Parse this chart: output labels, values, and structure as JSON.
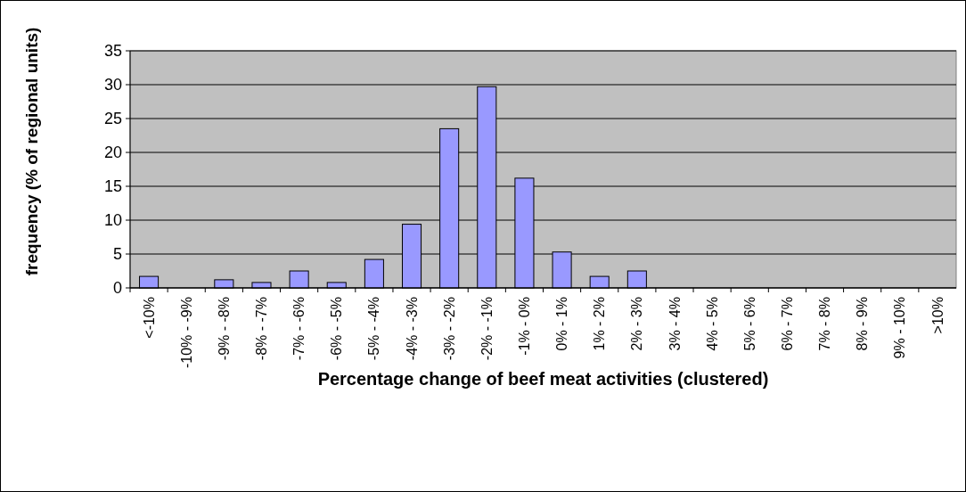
{
  "chart_data": {
    "type": "bar",
    "xlabel": "Percentage change of beef meat activities (clustered)",
    "ylabel": "frequency (% of regional units)",
    "categories": [
      "<-10%",
      "-10% - -9%",
      "-9% - -8%",
      "-8% - -7%",
      "-7% - -6%",
      "-6% - -5%",
      "-5% - -4%",
      "-4% - -3%",
      "-3% - -2%",
      "-2% - -1%",
      "-1% - 0%",
      "0% - 1%",
      "1% - 2%",
      "2% - 3%",
      "3% - 4%",
      "4% - 5%",
      "5% - 6%",
      "6% - 7%",
      "7% - 8%",
      "8% - 9%",
      "9% - 10%",
      ">10%"
    ],
    "values": [
      1.7,
      0,
      1.2,
      0.8,
      2.5,
      0.8,
      4.2,
      9.4,
      23.5,
      29.7,
      16.2,
      5.3,
      1.7,
      2.5,
      0,
      0,
      0,
      0,
      0,
      0,
      0,
      0
    ],
    "color": "#9999ff",
    "ylim": [
      0,
      35
    ],
    "yticks": [
      0,
      5,
      10,
      15,
      20,
      25,
      30,
      35
    ],
    "grid": "y"
  }
}
